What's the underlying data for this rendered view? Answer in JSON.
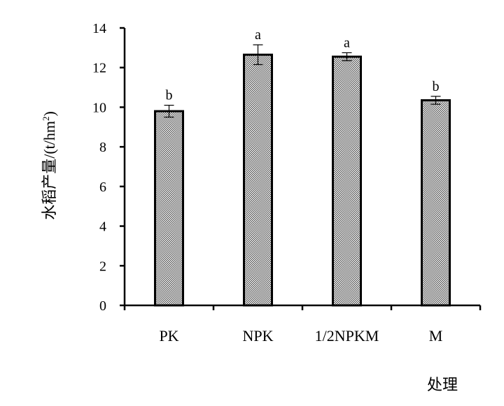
{
  "chart_data": {
    "type": "bar",
    "categories": [
      "PK",
      "NPK",
      "1/2NPKM",
      "M"
    ],
    "values": [
      9.8,
      12.65,
      12.55,
      10.35
    ],
    "error_upper": [
      0.3,
      0.5,
      0.2,
      0.2
    ],
    "error_lower": [
      0.3,
      0.5,
      0.2,
      0.2
    ],
    "significance": [
      "b",
      "a",
      "a",
      "b"
    ],
    "xlabel": "处理",
    "ylabel_main": "水稻产量/(t/hm",
    "ylabel_sup": "2",
    "ylabel_end": ")",
    "ylim": [
      0,
      14
    ],
    "yticks": [
      "0",
      "2",
      "4",
      "6",
      "8",
      "10",
      "12",
      "14"
    ],
    "grid": false,
    "legend": "none",
    "bar_fill": "#9a9a9a",
    "bar_edge": "#000000"
  }
}
